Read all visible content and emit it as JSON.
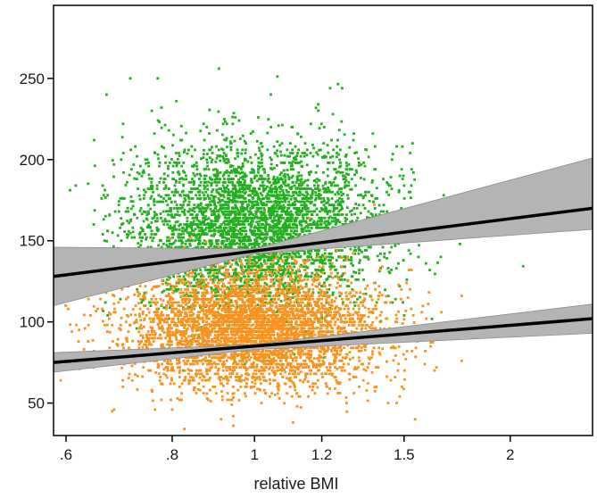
{
  "chart_data": {
    "type": "scatter",
    "title": "",
    "xlabel": "relative BMI",
    "ylabel": "",
    "x_scale": "log",
    "xlim": [
      0.58,
      2.5
    ],
    "ylim": [
      30,
      295
    ],
    "x_ticks": [
      {
        "value": 0.6,
        "label": ".6"
      },
      {
        "value": 0.8,
        "label": ".8"
      },
      {
        "value": 1.0,
        "label": "1"
      },
      {
        "value": 1.2,
        "label": "1.2"
      },
      {
        "value": 1.5,
        "label": "1.5"
      },
      {
        "value": 2.0,
        "label": "2"
      }
    ],
    "y_ticks": [
      {
        "value": 50,
        "label": "50"
      },
      {
        "value": 100,
        "label": "100"
      },
      {
        "value": 150,
        "label": "150"
      },
      {
        "value": 200,
        "label": "200"
      },
      {
        "value": 250,
        "label": "250"
      }
    ],
    "grid": false,
    "legend": "none",
    "series": [
      {
        "color": "#22b01e",
        "scatter_center": {
          "x": 1.0,
          "y": 158
        },
        "scatter_spread_y": 26,
        "fit": {
          "x": [
            0.58,
            2.5
          ],
          "y": [
            128,
            170
          ]
        },
        "ci_upper": {
          "x": [
            0.58,
            1.0,
            2.5
          ],
          "y": [
            146,
            145,
            201
          ]
        },
        "ci_lower": {
          "x": [
            0.58,
            1.0,
            2.5
          ],
          "y": [
            110,
            142,
            157
          ]
        }
      },
      {
        "color": "#f7931e",
        "scatter_center": {
          "x": 1.0,
          "y": 95
        },
        "scatter_spread_y": 18,
        "fit": {
          "x": [
            0.58,
            2.5
          ],
          "y": [
            75,
            102
          ]
        },
        "ci_upper": {
          "x": [
            0.58,
            1.0,
            2.5
          ],
          "y": [
            81,
            86,
            111
          ]
        },
        "ci_lower": {
          "x": [
            0.58,
            1.0,
            2.5
          ],
          "y": [
            69,
            83,
            93
          ]
        }
      }
    ],
    "band_color": "#b4b4b4",
    "fit_color": "#000000"
  }
}
